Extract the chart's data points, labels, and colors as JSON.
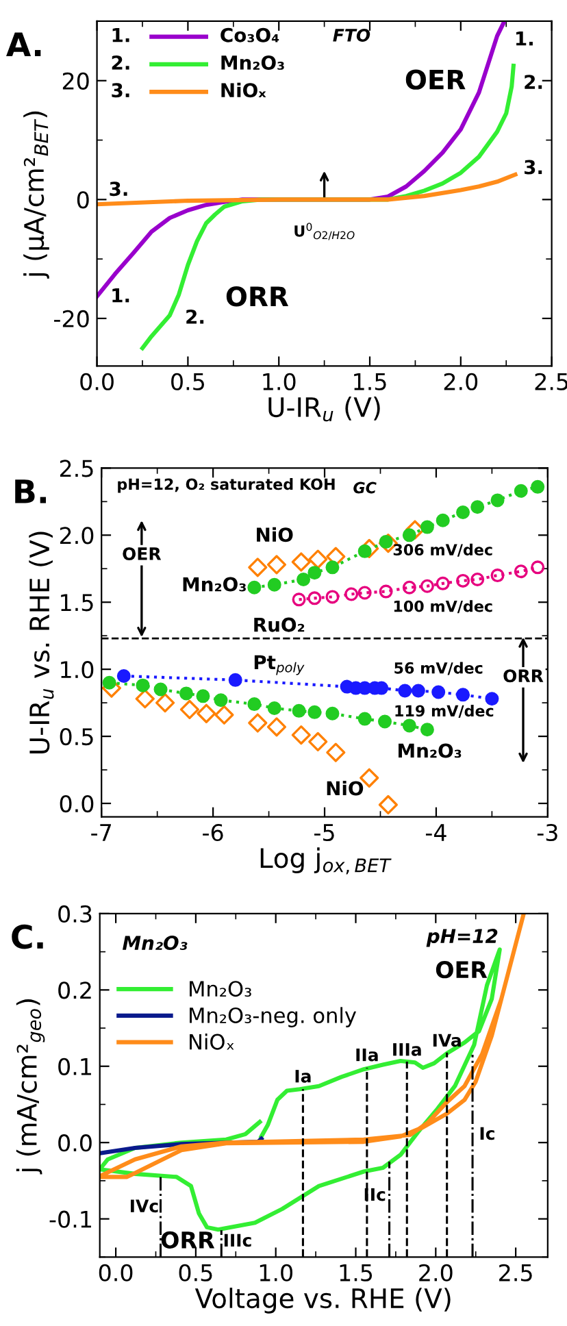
{
  "chart_data": [
    {
      "type": "line",
      "title": "A.",
      "xlabel": "U-IR$_{u}$ (V)",
      "ylabel": "j (μA/cm²$_{BET}$)",
      "xlim": [
        0,
        2.5
      ],
      "xticks": [
        {
          "value": 0,
          "label": "0.0"
        },
        {
          "value": 0.5,
          "label": "0.5"
        },
        {
          "value": 1,
          "label": "1.0"
        },
        {
          "value": 1.5,
          "label": "1.5"
        },
        {
          "value": 2,
          "label": "2.0"
        },
        {
          "value": 2.5,
          "label": "2.5"
        }
      ],
      "ylim": [
        -28,
        30
      ],
      "yticks": [
        -20,
        0,
        20
      ],
      "legend": "top left",
      "series": [
        {
          "name": "Co₃O₄",
          "color": "#9900cc",
          "x": [
            0,
            0.1,
            0.2,
            0.3,
            0.4,
            0.5,
            0.6,
            0.7,
            0.8,
            1.0,
            1.5,
            1.6,
            1.7,
            1.8,
            1.9,
            2.0,
            2.1,
            2.2,
            2.24
          ],
          "values": [
            -16.3,
            -12.5,
            -9,
            -5.4,
            -3.1,
            -1.8,
            -0.9,
            -0.4,
            0,
            0,
            0,
            0.5,
            2.2,
            4.8,
            7.9,
            11.8,
            18,
            27.5,
            30
          ]
        },
        {
          "name": "Mn₂O₃",
          "color": "#33ee33",
          "x": [
            0.25,
            0.3,
            0.4,
            0.45,
            0.5,
            0.55,
            0.6,
            0.65,
            0.7,
            0.8,
            0.9,
            1.6,
            1.7,
            1.8,
            1.9,
            2.0,
            2.1,
            2.2,
            2.25,
            2.28,
            2.29
          ],
          "values": [
            -25,
            -23,
            -19.5,
            -16,
            -11,
            -7,
            -4,
            -2.5,
            -1.2,
            -0.3,
            0,
            0,
            0.6,
            1.5,
            2.7,
            4.5,
            7.2,
            11.4,
            14.5,
            19,
            22.5
          ]
        },
        {
          "name": "NiOₓ",
          "color": "#ff8c1a",
          "x": [
            0,
            0.5,
            1.0,
            1.6,
            1.8,
            2.0,
            2.1,
            2.2,
            2.3
          ],
          "values": [
            -0.8,
            -0.2,
            0,
            0,
            0.6,
            1.6,
            2.2,
            3.0,
            4.2
          ]
        }
      ],
      "annotations": [
        "1.",
        "2.",
        "3.",
        "FTO",
        "1.",
        "2.",
        "3.",
        "1.",
        "2.",
        "3.",
        "OER",
        "ORR",
        "U$^{0}$$_{O2/H2O}$"
      ]
    },
    {
      "type": "line",
      "title": "B.",
      "xlabel": "Log j$_{ox,BET}$",
      "ylabel": "U-IR$_{u}$ vs. RHE (V)",
      "xlim": [
        -7,
        -3
      ],
      "xticks": [
        -7,
        -6,
        -5,
        -4,
        -3
      ],
      "ylim": [
        -0.1,
        2.5
      ],
      "yticks": [
        {
          "value": 0,
          "label": "0.0"
        },
        {
          "value": 0.5,
          "label": "0.5"
        },
        {
          "value": 1,
          "label": "1.0"
        },
        {
          "value": 1.5,
          "label": "1.5"
        },
        {
          "value": 2,
          "label": "2.0"
        },
        {
          "value": 2.5,
          "label": "2.5"
        }
      ],
      "ref_lines": [
        {
          "axis": "y",
          "value": 1.23,
          "color": "#000000",
          "line_style": "dashed"
        }
      ],
      "series": [
        {
          "type": "line",
          "color": "#22cc22",
          "marker": "circle",
          "line_style": "dotted",
          "x": [
            -5.63,
            -5.45,
            -5.19,
            -5.09,
            -4.93,
            -4.64,
            -4.45,
            -4.24,
            -4.08,
            -3.94,
            -3.76,
            -3.63,
            -3.45,
            -3.24,
            -3.09
          ],
          "values": [
            1.61,
            1.63,
            1.67,
            1.72,
            1.76,
            1.88,
            1.95,
            2.0,
            2.06,
            2.11,
            2.17,
            2.21,
            2.26,
            2.33,
            2.36
          ]
        },
        {
          "type": "line",
          "color": "#22cc22",
          "marker": "circle",
          "line_style": "dotted",
          "x": [
            -6.93,
            -6.63,
            -6.47,
            -6.24,
            -6.09,
            -5.93,
            -5.63,
            -5.45,
            -5.23,
            -5.09,
            -4.93,
            -4.64,
            -4.46,
            -4.24,
            -4.08
          ],
          "values": [
            0.9,
            0.88,
            0.85,
            0.82,
            0.8,
            0.77,
            0.74,
            0.71,
            0.69,
            0.68,
            0.67,
            0.63,
            0.61,
            0.58,
            0.55
          ]
        },
        {
          "type": "scatter",
          "color": "#ff8000",
          "marker": "diamond",
          "x": [
            -5.6,
            -5.43,
            -5.21,
            -5.06,
            -4.9,
            -4.6,
            -4.43,
            -4.19
          ],
          "values": [
            1.76,
            1.78,
            1.8,
            1.82,
            1.84,
            1.9,
            1.94,
            2.04
          ]
        },
        {
          "type": "scatter",
          "color": "#ff8000",
          "marker": "diamond",
          "x": [
            -6.91,
            -6.61,
            -6.43,
            -6.21,
            -6.06,
            -5.9,
            -5.6,
            -5.43,
            -5.21,
            -5.06,
            -4.9,
            -4.6,
            -4.43
          ],
          "values": [
            0.86,
            0.78,
            0.75,
            0.7,
            0.67,
            0.66,
            0.6,
            0.57,
            0.51,
            0.46,
            0.38,
            0.19,
            -0.01
          ]
        },
        {
          "type": "line",
          "color": "#e6007e",
          "marker": "circle",
          "line_style": "dotted",
          "x": [
            -5.23,
            -5.09,
            -4.93,
            -4.76,
            -4.64,
            -4.45,
            -4.24,
            -4.08,
            -3.94,
            -3.76,
            -3.63,
            -3.45,
            -3.24,
            -3.09
          ],
          "values": [
            1.52,
            1.53,
            1.54,
            1.56,
            1.57,
            1.58,
            1.61,
            1.62,
            1.64,
            1.66,
            1.67,
            1.7,
            1.73,
            1.76
          ]
        },
        {
          "type": "line",
          "color": "#1a1aff",
          "marker": "circle",
          "line_style": "dotted",
          "x": [
            -6.8,
            -5.8,
            -4.8,
            -4.72,
            -4.64,
            -4.55,
            -4.49,
            -4.28,
            -4.16,
            -3.98,
            -3.76,
            -3.5
          ],
          "values": [
            0.95,
            0.92,
            0.87,
            0.86,
            0.86,
            0.86,
            0.86,
            0.84,
            0.84,
            0.83,
            0.81,
            0.78
          ]
        }
      ],
      "annotations": [
        "pH=12, O₂ saturated KOH",
        "GC",
        "NiO",
        "Mn₂O₃",
        "306 mV/dec",
        "100 mV/dec",
        "RuO₂",
        "Pt$_{poly}$",
        "56 mV/dec",
        "119 mV/dec",
        "Mn₂O₃",
        "NiO",
        "OER",
        "ORR"
      ]
    },
    {
      "type": "line",
      "title": "C.",
      "xlabel": "Voltage vs. RHE (V)",
      "ylabel": "j (mA/cm²$_{geo}$)",
      "xlim": [
        -0.1,
        2.7
      ],
      "xticks": [
        {
          "value": 0,
          "label": "0.0"
        },
        {
          "value": 0.5,
          "label": "0.5"
        },
        {
          "value": 1,
          "label": "1.0"
        },
        {
          "value": 1.5,
          "label": "1.5"
        },
        {
          "value": 2,
          "label": "2.0"
        },
        {
          "value": 2.5,
          "label": "2.5"
        }
      ],
      "ylim": [
        -0.15,
        0.3
      ],
      "yticks": [
        -0.1,
        {
          "value": 0,
          "label": "0.0"
        },
        0.1,
        0.2,
        0.3
      ],
      "legend": "top left",
      "series": [
        {
          "name": "Mn₂O₃",
          "color": "#33ee33",
          "x": [
            0.91,
            0.95,
            1.01,
            1.07,
            1.15,
            1.27,
            1.41,
            1.55,
            1.67,
            1.78,
            1.87,
            1.92,
            1.99,
            2.07,
            2.18,
            2.27,
            2.35,
            2.4,
            2.32,
            2.24,
            2.12,
            2.01,
            1.89,
            1.78,
            1.67,
            1.55,
            1.27,
            1.04,
            0.87,
            0.64,
            0.57,
            0.52,
            0.47,
            0.38,
            0.12,
            -0.1,
            -0.05,
            0.12,
            0.41,
            0.69,
            0.81,
            0.9
          ],
          "values": [
            0.008,
            0.023,
            0.056,
            0.068,
            0.07,
            0.074,
            0.086,
            0.096,
            0.102,
            0.107,
            0.105,
            0.098,
            0.104,
            0.117,
            0.131,
            0.146,
            0.188,
            0.253,
            0.206,
            0.128,
            0.074,
            0.044,
            0.014,
            -0.016,
            -0.033,
            -0.038,
            -0.057,
            -0.087,
            -0.105,
            -0.114,
            -0.111,
            -0.093,
            -0.057,
            -0.045,
            -0.041,
            -0.035,
            -0.022,
            -0.007,
            0,
            0.004,
            0.011,
            0.027
          ]
        },
        {
          "name": "Mn₂O₃-neg. only",
          "color": "#0a1a8c",
          "x": [
            -0.1,
            0.12,
            0.41,
            0.89,
            0.91
          ],
          "values": [
            -0.014,
            -0.007,
            -0.002,
            0.001,
            0.005
          ]
        },
        {
          "name": "NiOₓ",
          "color": "#ff8c1a",
          "x": [
            -0.1,
            0.07,
            0.12,
            0.41,
            0.69,
            1.55,
            1.78,
            1.92,
            2.07,
            2.18,
            2.25,
            2.35,
            2.44,
            2.55,
            2.41,
            2.29,
            2.18,
            2.07,
            1.95,
            1.84,
            1.55,
            0.69,
            0.41,
            0.12,
            -0.1
          ],
          "values": [
            -0.045,
            -0.045,
            -0.04,
            -0.01,
            -0.001,
            0.001,
            0.008,
            0.02,
            0.038,
            0.056,
            0.08,
            0.14,
            0.212,
            0.3,
            0.188,
            0.116,
            0.074,
            0.053,
            0.026,
            0.01,
            0.004,
            0,
            -0.005,
            -0.022,
            -0.044
          ]
        }
      ],
      "ref_lines": [
        {
          "axis": "x",
          "value": 1.17,
          "label": "Ia",
          "line_style": "dashed"
        },
        {
          "axis": "x",
          "value": 1.57,
          "label": "IIa",
          "line_style": "dashed"
        },
        {
          "axis": "x",
          "value": 1.82,
          "label": "IIIa",
          "line_style": "dashed"
        },
        {
          "axis": "x",
          "value": 2.07,
          "label": "IVa",
          "line_style": "dashed"
        },
        {
          "axis": "x",
          "value": 2.23,
          "label": "Ic",
          "line_style": "dashdot"
        },
        {
          "axis": "x",
          "value": 1.71,
          "label": "IIc",
          "line_style": "dashdot"
        },
        {
          "axis": "x",
          "value": 0.28,
          "label": "IVc",
          "line_style": "dashdot"
        },
        {
          "axis": "x",
          "value": 0.66,
          "label": "IIIc",
          "line_style": "dashdot"
        }
      ],
      "annotations": [
        "Mn₂O₃",
        "pH=12",
        "OER",
        "ORR"
      ]
    }
  ]
}
